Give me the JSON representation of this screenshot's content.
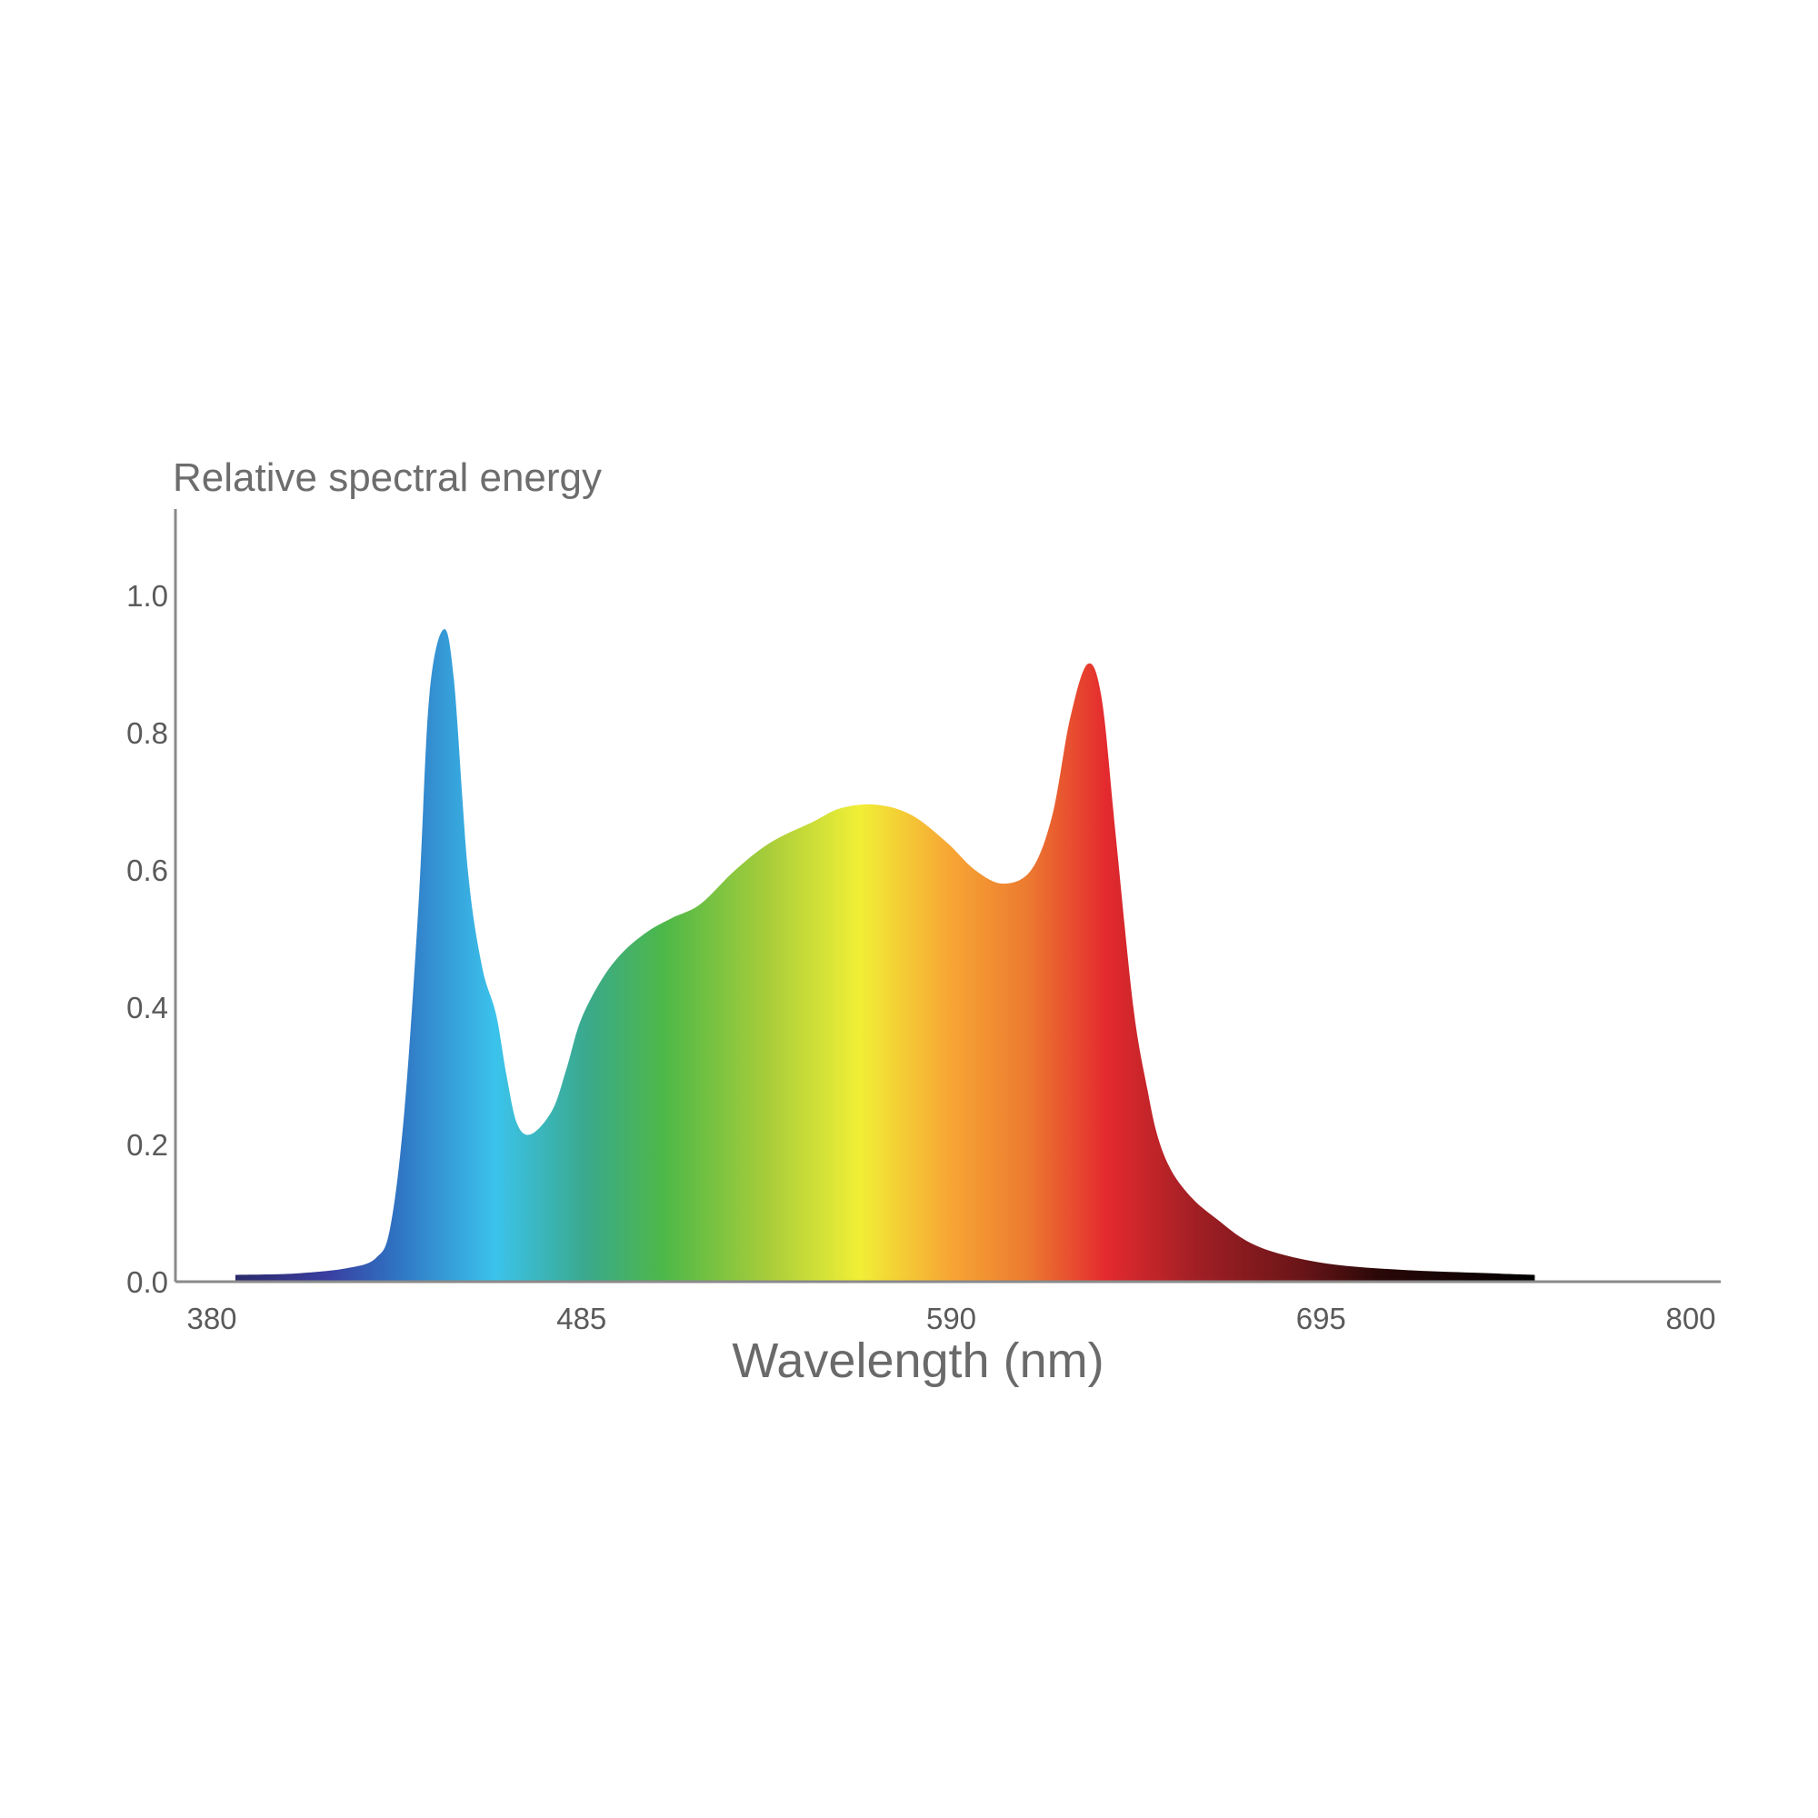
{
  "chart_data": {
    "type": "area",
    "title": "",
    "ylabel": "Relative spectral energy",
    "xlabel": "Wavelength (nm)",
    "x_ticks": [
      "380",
      "485",
      "590",
      "695",
      "800"
    ],
    "y_ticks": [
      "0.0",
      "0.2",
      "0.4",
      "0.6",
      "0.8",
      "1.0"
    ],
    "xlim": [
      380,
      800
    ],
    "ylim": [
      0,
      1.1
    ],
    "grid": false,
    "legend": "none",
    "series": [
      {
        "x": [
          388,
          405,
          420,
          428,
          432,
          436,
          440,
          443,
          447,
          450,
          454,
          458,
          462,
          465,
          468,
          472,
          478,
          482,
          486,
          492,
          498,
          505,
          512,
          520,
          530,
          540,
          552,
          560,
          570,
          580,
          590,
          598,
          606,
          614,
          620,
          625,
          630,
          634,
          638,
          643,
          647,
          650,
          654,
          660,
          667,
          675,
          685,
          700,
          720,
          740,
          757
        ],
        "y": [
          0.01,
          0.012,
          0.02,
          0.035,
          0.08,
          0.25,
          0.55,
          0.85,
          0.95,
          0.88,
          0.6,
          0.46,
          0.39,
          0.3,
          0.23,
          0.215,
          0.25,
          0.31,
          0.38,
          0.44,
          0.48,
          0.51,
          0.53,
          0.55,
          0.6,
          0.64,
          0.67,
          0.69,
          0.695,
          0.68,
          0.64,
          0.6,
          0.58,
          0.6,
          0.68,
          0.82,
          0.9,
          0.85,
          0.65,
          0.4,
          0.28,
          0.21,
          0.16,
          0.12,
          0.09,
          0.06,
          0.04,
          0.025,
          0.017,
          0.013,
          0.01
        ]
      }
    ],
    "colors": {
      "axis": "#8a8a8a",
      "spectrum_stops": [
        {
          "offset": 0.0,
          "color": "#2a2a6a"
        },
        {
          "offset": 0.07,
          "color": "#3a3ea0"
        },
        {
          "offset": 0.12,
          "color": "#2f6fc0"
        },
        {
          "offset": 0.2,
          "color": "#3bc3ec"
        },
        {
          "offset": 0.27,
          "color": "#3aa98c"
        },
        {
          "offset": 0.33,
          "color": "#4db848"
        },
        {
          "offset": 0.41,
          "color": "#a8cd3a"
        },
        {
          "offset": 0.48,
          "color": "#f1ef36"
        },
        {
          "offset": 0.55,
          "color": "#f7a634"
        },
        {
          "offset": 0.61,
          "color": "#ec7a30"
        },
        {
          "offset": 0.67,
          "color": "#e42a2e"
        },
        {
          "offset": 0.74,
          "color": "#a01f24"
        },
        {
          "offset": 0.82,
          "color": "#6a1518"
        },
        {
          "offset": 0.88,
          "color": "#2a0808"
        },
        {
          "offset": 1.0,
          "color": "#000000"
        }
      ]
    }
  }
}
